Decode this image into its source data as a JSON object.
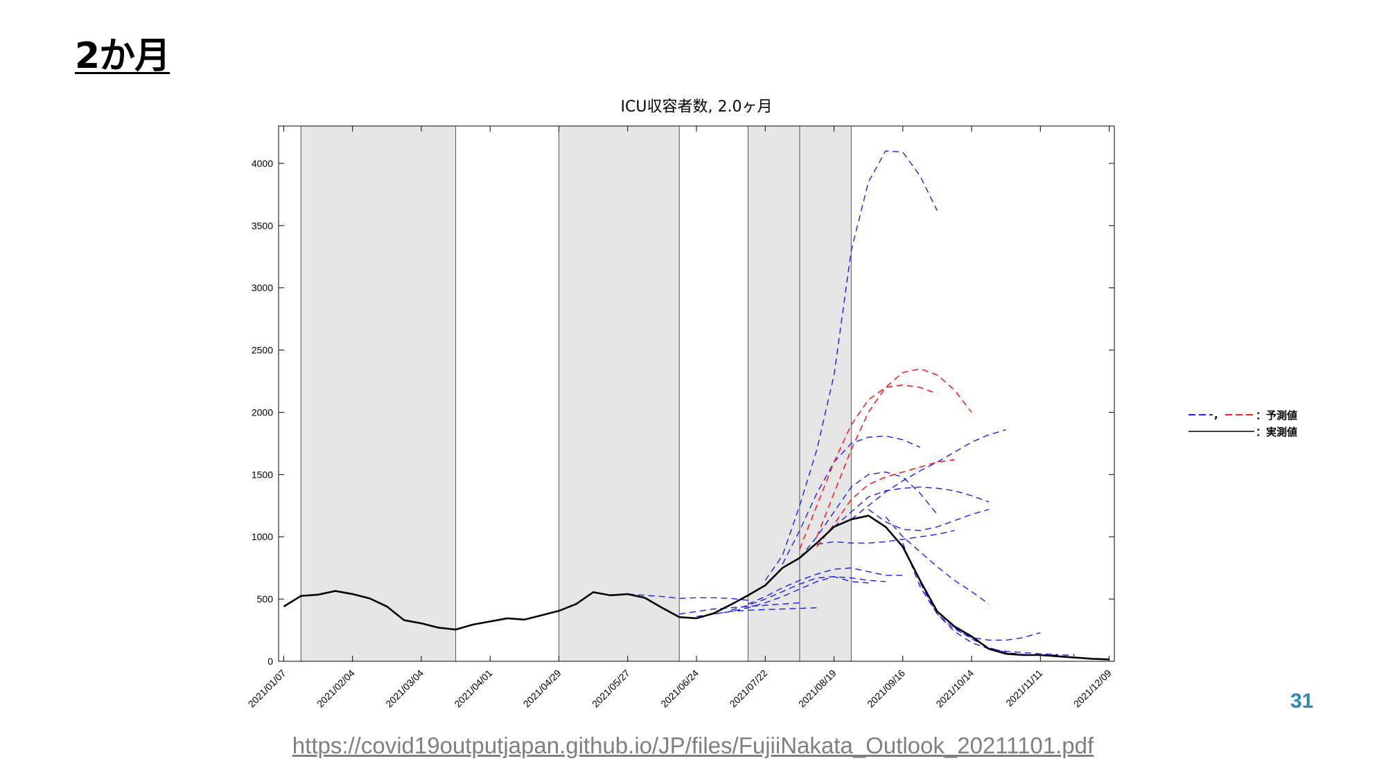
{
  "slide": {
    "title": "2か月",
    "page_number": "31",
    "source_url": "https://covid19outputjapan.github.io/JP/files/FujiiNakata_Outlook_20211101.pdf"
  },
  "colors": {
    "actual": "#000000",
    "forecast_blue": "#1a1aff",
    "forecast_red": "#ff1a1a",
    "shade": "#e6e6e6",
    "page_number": "#2e86c1"
  },
  "chart_data": {
    "type": "line",
    "title": "ICU収容者数, 2.0ヶ月",
    "xlabel": "",
    "ylabel": "",
    "x_ticks": [
      "2021/01/07",
      "2021/02/04",
      "2021/03/04",
      "2021/04/01",
      "2021/04/29",
      "2021/05/27",
      "2021/06/24",
      "2021/07/22",
      "2021/08/19",
      "2021/09/16",
      "2021/10/14",
      "2021/11/11",
      "2021/12/09"
    ],
    "y_ticks": [
      0,
      500,
      1000,
      1500,
      2000,
      2500,
      3000,
      3500,
      4000
    ],
    "xlim_weeks": [
      -0.3,
      48.3
    ],
    "ylim": [
      0,
      4300
    ],
    "grid": false,
    "shaded_periods_weeks": [
      [
        1,
        10
      ],
      [
        16,
        23
      ],
      [
        27,
        30
      ],
      [
        30,
        33
      ]
    ],
    "legend": {
      "position": "right",
      "forecast_label": "：予測値",
      "actual_label": "：実測値",
      "separator": ","
    },
    "actual": {
      "name": "実測値",
      "week_index": [
        0,
        1,
        2,
        3,
        4,
        5,
        6,
        7,
        8,
        9,
        10,
        11,
        12,
        13,
        14,
        15,
        16,
        17,
        18,
        19,
        20,
        21,
        22,
        23,
        24,
        25,
        26,
        27,
        28,
        29,
        30,
        31,
        32,
        33,
        34,
        35,
        36,
        37,
        38,
        39,
        40,
        41,
        42,
        43,
        44,
        45,
        46,
        47,
        48
      ],
      "values": [
        440,
        525,
        535,
        565,
        540,
        505,
        440,
        330,
        305,
        270,
        255,
        295,
        320,
        345,
        335,
        370,
        405,
        460,
        555,
        530,
        540,
        510,
        430,
        355,
        345,
        385,
        455,
        530,
        610,
        750,
        830,
        950,
        1080,
        1140,
        1170,
        1080,
        920,
        650,
        400,
        280,
        200,
        100,
        60,
        50,
        50,
        40,
        30,
        20,
        15
      ]
    },
    "forecast_blue": [
      {
        "week_start": 20,
        "values": [
          540,
          530,
          520,
          505,
          510,
          510,
          505,
          490
        ]
      },
      {
        "week_start": 23,
        "values": [
          380,
          400,
          420,
          430,
          440,
          450,
          460,
          470
        ]
      },
      {
        "week_start": 24,
        "values": [
          360,
          380,
          400,
          410,
          415,
          420,
          425,
          430
        ]
      },
      {
        "week_start": 25,
        "values": [
          380,
          400,
          430,
          470,
          520,
          580,
          640,
          680,
          640,
          630
        ]
      },
      {
        "week_start": 26,
        "values": [
          410,
          450,
          500,
          560,
          620,
          670,
          680,
          670,
          650,
          640
        ]
      },
      {
        "week_start": 27,
        "values": [
          460,
          520,
          590,
          650,
          700,
          740,
          750,
          720,
          690,
          690
        ]
      },
      {
        "week_start": 28,
        "values": [
          650,
          850,
          1250,
          1700,
          2300,
          3300,
          3850,
          4100,
          4090,
          3900,
          3620
        ]
      },
      {
        "week_start": 29,
        "values": [
          780,
          1050,
          1350,
          1600,
          1750,
          1800,
          1810,
          1780,
          1720
        ]
      },
      {
        "week_start": 30,
        "values": [
          830,
          1000,
          1200,
          1400,
          1500,
          1520,
          1480,
          1350,
          1180
        ]
      },
      {
        "week_start": 31,
        "values": [
          940,
          960,
          950,
          950,
          960,
          980,
          1000,
          1020,
          1050
        ]
      },
      {
        "week_start": 32,
        "values": [
          1080,
          1200,
          1320,
          1370,
          1390,
          1400,
          1390,
          1370,
          1330,
          1280
        ]
      },
      {
        "week_start": 33,
        "values": [
          1140,
          1250,
          1360,
          1450,
          1530,
          1600,
          1680,
          1760,
          1820,
          1860
        ]
      },
      {
        "week_start": 34,
        "values": [
          1220,
          1120,
          1060,
          1050,
          1080,
          1130,
          1180,
          1220
        ]
      },
      {
        "week_start": 35,
        "values": [
          1160,
          1000,
          880,
          760,
          650,
          560,
          460
        ]
      },
      {
        "week_start": 36,
        "values": [
          950,
          600,
          380,
          260,
          190,
          170,
          170,
          190,
          230
        ]
      },
      {
        "week_start": 37,
        "values": [
          630,
          380,
          240,
          150,
          100,
          80,
          70,
          60,
          55
        ]
      },
      {
        "week_start": 39,
        "values": [
          270,
          180,
          110,
          70,
          55,
          50,
          50,
          50
        ]
      }
    ],
    "forecast_red": [
      {
        "week_start": 30,
        "values": [
          900,
          1250,
          1600,
          1900,
          2100,
          2200,
          2220,
          2200,
          2150
        ]
      },
      {
        "week_start": 31,
        "values": [
          1000,
          1350,
          1700,
          2000,
          2200,
          2320,
          2350,
          2300,
          2180,
          2000
        ]
      },
      {
        "week_start": 31,
        "values": [
          920,
          1100,
          1300,
          1420,
          1480,
          1520,
          1560,
          1600,
          1620
        ]
      }
    ]
  }
}
